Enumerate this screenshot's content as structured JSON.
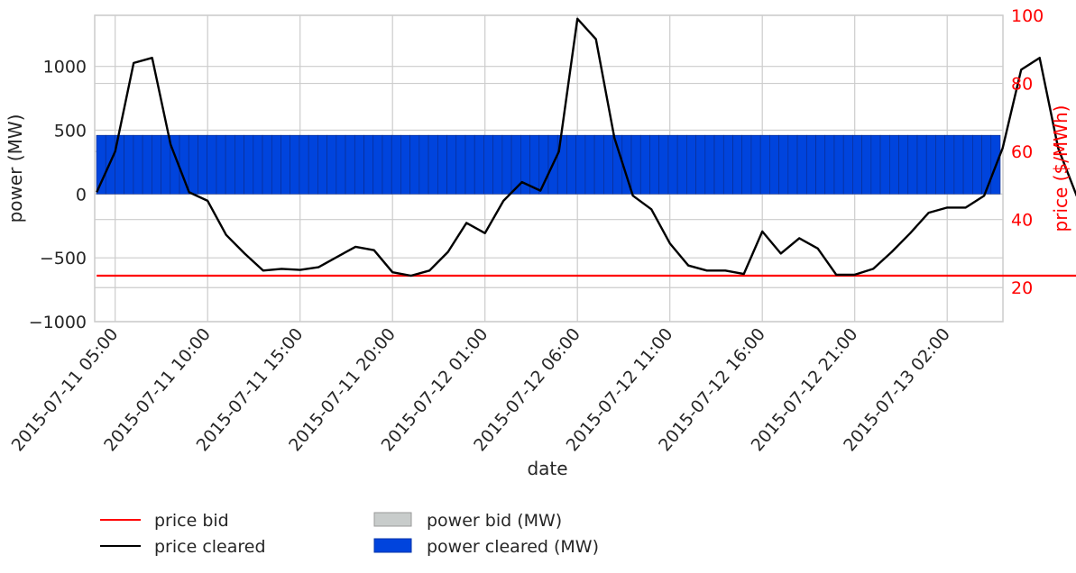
{
  "chart_data": {
    "type": "bar+line",
    "xlabel": "date",
    "ylabel_left": "power (MW)",
    "ylabel_right": "price ($/MWh)",
    "ylim_left": [
      -1000,
      1400
    ],
    "yticks_left": [
      "1000",
      "500",
      "0",
      "−500",
      "−1000"
    ],
    "yticks_left_values": [
      1000,
      500,
      0,
      -500,
      -1000
    ],
    "ylim_right": [
      10,
      100
    ],
    "yticks_right": [
      "100",
      "80",
      "60",
      "40",
      "20"
    ],
    "yticks_right_values": [
      100,
      80,
      60,
      40,
      20
    ],
    "x_start": "2015-07-11 04:00",
    "x_tick_labels": [
      "2015-07-11 05:00",
      "2015-07-11 10:00",
      "2015-07-11 15:00",
      "2015-07-11 20:00",
      "2015-07-12 01:00",
      "2015-07-12 06:00",
      "2015-07-12 11:00",
      "2015-07-12 16:00",
      "2015-07-12 21:00",
      "2015-07-13 02:00"
    ],
    "grid": true,
    "legend_position": "bottom",
    "power_bid_mw": 460,
    "power_cleared_mw": 460,
    "price_bid": 23.5,
    "price_cleared": [
      48,
      60,
      86,
      87.5,
      62,
      48,
      45.5,
      35.5,
      30,
      25,
      25.5,
      25.2,
      26,
      29,
      32,
      31,
      24.5,
      23.5,
      25,
      30.5,
      39,
      36,
      45.5,
      51,
      48.5,
      60,
      99,
      93,
      64,
      47,
      43,
      33,
      26.5,
      25,
      25,
      24,
      36.5,
      30,
      34.5,
      31.5,
      23.8,
      23.8,
      25.5,
      30.5,
      36,
      42,
      43.5,
      43.5,
      47,
      61,
      84,
      87.5,
      61,
      47,
      39,
      34.5,
      32,
      25.5,
      23.5,
      24,
      24,
      30,
      34.5,
      29,
      26.5,
      25,
      29.5,
      29.5,
      37,
      40.5,
      42.5,
      42,
      48.5,
      61,
      85,
      87,
      63,
      47,
      40,
      34,
      32,
      26,
      25,
      35.5,
      25,
      30.5,
      33,
      32.5,
      25,
      24.2,
      26.5,
      31,
      40.5,
      42.5,
      43.5,
      43.5,
      47.5,
      60.5
    ],
    "legend": {
      "price_bid": "price bid",
      "price_cleared": "price cleared",
      "power_bid": "power bid (MW)",
      "power_cleared": "power cleared (MW)"
    },
    "colors": {
      "price_bid": "#ff0000",
      "price_cleared": "#000000",
      "power_bid": "#c8cccb",
      "power_cleared": "#0044dd",
      "right_axis": "#ff0000",
      "grid": "#cccccc"
    }
  }
}
